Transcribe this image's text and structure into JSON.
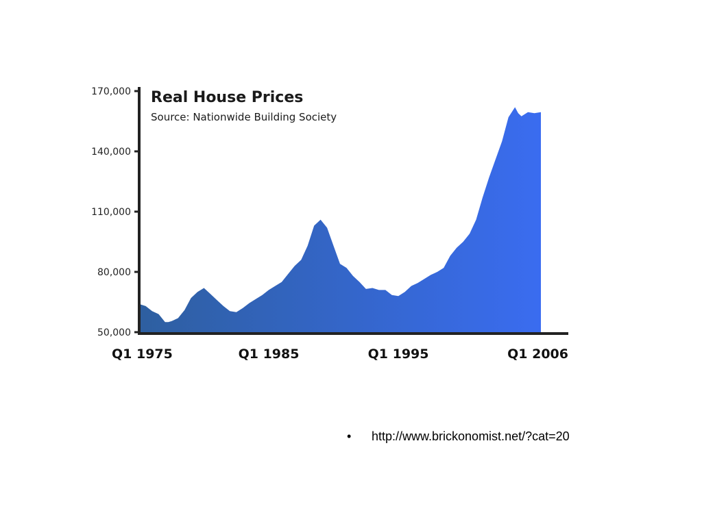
{
  "chart_data": {
    "type": "area",
    "title": "Real House Prices",
    "subtitle": "Source: Nationwide Building Society",
    "xlabel": "",
    "ylabel": "",
    "ylim": [
      50000,
      170000
    ],
    "xlim": [
      1975,
      2006
    ],
    "yticks": [
      50000,
      80000,
      110000,
      140000,
      170000
    ],
    "ytick_labels": [
      "50,000",
      "80,000",
      "110,000",
      "140,000",
      "170,000"
    ],
    "xticks": [
      1975,
      1985,
      1995,
      2006
    ],
    "xtick_labels": [
      "Q1 1975",
      "Q1 1985",
      "Q1 1995",
      "Q1 2006"
    ],
    "grid": false,
    "legend": "none",
    "colors": {
      "fill_start": "#2e5fa0",
      "fill_end": "#3a6cf0",
      "axis": "#222222"
    },
    "series": [
      {
        "x": [
          1975.0,
          1975.5,
          1976.0,
          1976.5,
          1977.0,
          1977.25,
          1977.5,
          1978.0,
          1978.5,
          1979.0,
          1979.5,
          1980.0,
          1980.5,
          1981.0,
          1981.5,
          1982.0,
          1982.5,
          1983.0,
          1983.5,
          1984.0,
          1984.5,
          1985.0,
          1985.5,
          1986.0,
          1986.5,
          1987.0,
          1987.5,
          1988.0,
          1988.5,
          1989.0,
          1989.5,
          1990.0,
          1990.5,
          1991.0,
          1991.5,
          1992.0,
          1992.5,
          1993.0,
          1993.5,
          1994.0,
          1994.5,
          1995.0,
          1995.5,
          1996.0,
          1996.5,
          1997.0,
          1997.5,
          1998.0,
          1998.5,
          1999.0,
          1999.5,
          2000.0,
          2000.5,
          2001.0,
          2001.5,
          2002.0,
          2002.5,
          2003.0,
          2003.5,
          2004.0,
          2004.25,
          2004.5,
          2005.0,
          2005.5,
          2006.0
        ],
        "values": [
          64000,
          63000,
          60500,
          59000,
          55000,
          55000,
          55500,
          57000,
          61000,
          67000,
          70000,
          72000,
          69000,
          66000,
          63000,
          60500,
          60000,
          62000,
          64500,
          66500,
          68500,
          71000,
          73000,
          75000,
          79000,
          83000,
          86000,
          93000,
          103000,
          106000,
          102000,
          93000,
          84000,
          82000,
          78000,
          75000,
          71500,
          72000,
          71000,
          71000,
          68500,
          68000,
          70000,
          73000,
          74500,
          76500,
          78500,
          80000,
          82000,
          88000,
          92000,
          95000,
          99000,
          106000,
          117000,
          127000,
          136000,
          145000,
          157000,
          162000,
          159000,
          157500,
          159500,
          159000,
          159500
        ]
      }
    ]
  },
  "footer": {
    "bullet": "•",
    "link_text": "http://www.brickonomist.net/?cat=20"
  }
}
